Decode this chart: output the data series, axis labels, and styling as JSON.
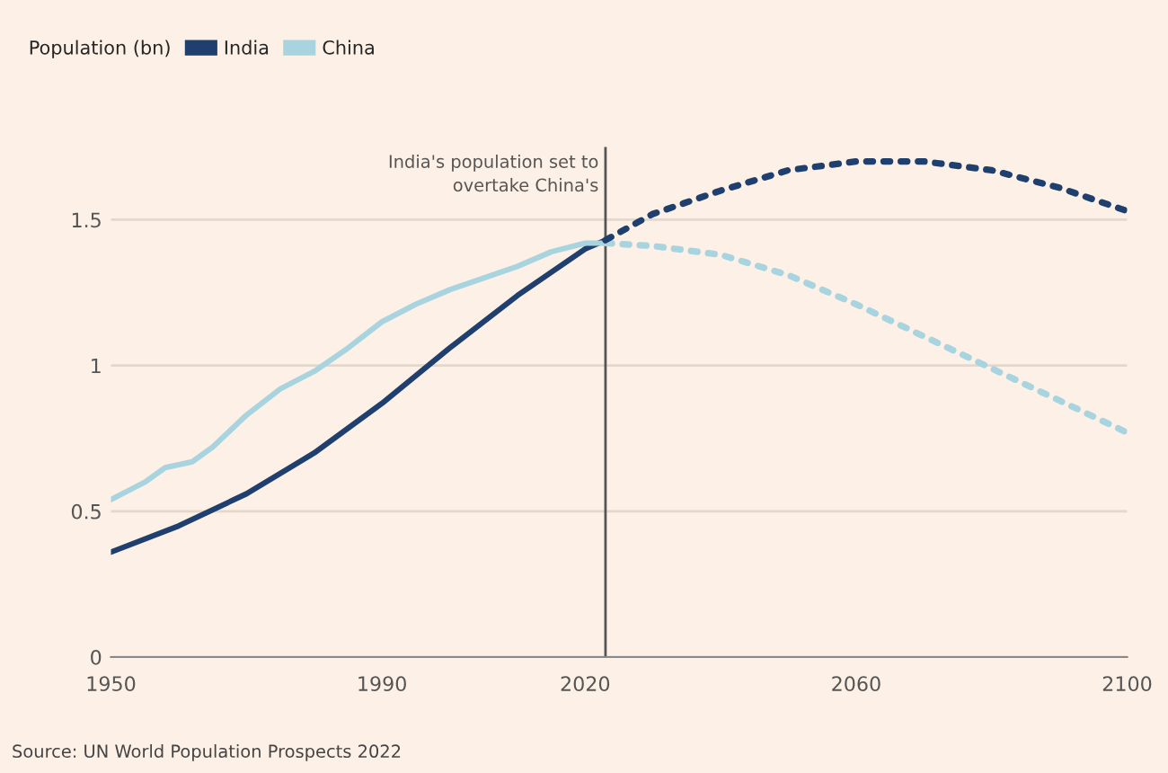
{
  "chart_data": {
    "type": "line",
    "legend_title": "Population (bn)",
    "legend": "top left",
    "grid": "y",
    "xlim": [
      1950,
      2100
    ],
    "xticks": [
      1950,
      1990,
      2020,
      2060,
      2100
    ],
    "ylim": [
      0,
      1.75
    ],
    "yticks": [
      0,
      0.5,
      1,
      1.5
    ],
    "series": [
      {
        "name": "India",
        "color": "#1f3f6e",
        "line_style": "solid",
        "x": [
          1950,
          1960,
          1970,
          1980,
          1990,
          2000,
          2010,
          2020,
          2023
        ],
        "values": [
          0.36,
          0.45,
          0.56,
          0.7,
          0.87,
          1.06,
          1.24,
          1.4,
          1.43
        ]
      },
      {
        "name": "China",
        "color": "#a8d4df",
        "line_style": "solid",
        "x": [
          1950,
          1955,
          1958,
          1960,
          1962,
          1965,
          1970,
          1975,
          1980,
          1985,
          1990,
          1995,
          2000,
          2005,
          2010,
          2015,
          2020,
          2023
        ],
        "values": [
          0.54,
          0.6,
          0.65,
          0.66,
          0.67,
          0.72,
          0.83,
          0.92,
          0.98,
          1.06,
          1.15,
          1.21,
          1.26,
          1.3,
          1.34,
          1.39,
          1.42,
          1.42
        ]
      },
      {
        "color": "#a8d4df",
        "line_style": "dotted",
        "x": [
          2023,
          2030,
          2040,
          2050,
          2060,
          2070,
          2080,
          2090,
          2100
        ],
        "values": [
          1.42,
          1.41,
          1.38,
          1.31,
          1.21,
          1.1,
          0.99,
          0.88,
          0.77
        ]
      },
      {
        "color": "#1f3f6e",
        "line_style": "dotted",
        "x": [
          2023,
          2030,
          2040,
          2050,
          2060,
          2070,
          2080,
          2090,
          2100
        ],
        "values": [
          1.43,
          1.52,
          1.6,
          1.67,
          1.7,
          1.7,
          1.67,
          1.61,
          1.53
        ]
      }
    ],
    "ref_lines": [
      {
        "axis": "x",
        "value": 2023,
        "label": "India's population set to\novertake China's",
        "color": "#555555"
      }
    ],
    "annotations": [
      "Source: UN World Population Prospects 2022"
    ]
  }
}
